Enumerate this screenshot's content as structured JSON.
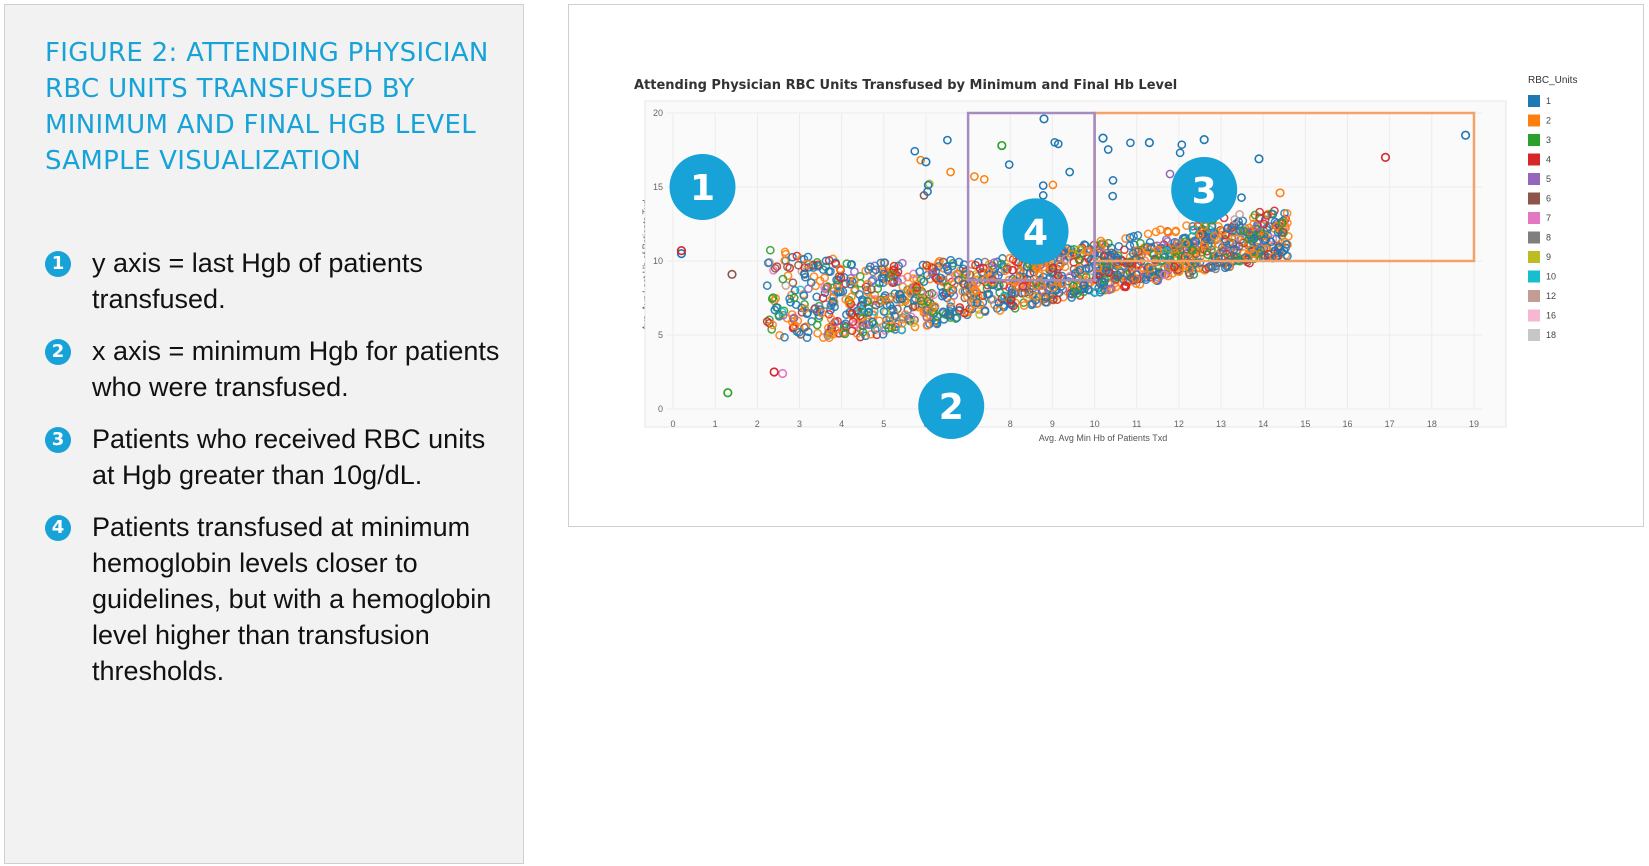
{
  "figure": {
    "title": "FIGURE 2: ATTENDING PHYSICIAN RBC UNITS TRANSFUSED BY MINIMUM AND FINAL HGB LEVEL SAMPLE VISUALIZATION"
  },
  "notes": [
    {
      "num": "1",
      "text": "y axis = last Hgb of patients transfused."
    },
    {
      "num": "2",
      "text": "x axis = minimum Hgb for patients who were transfused."
    },
    {
      "num": "3",
      "text": "Patients who received RBC units at Hgb greater than 10g/dL."
    },
    {
      "num": "4",
      "text": "Patients transfused at minimum hemoglobin levels closer to guidelines, but with a hemoglobin level higher than transfusion thresholds."
    }
  ],
  "chart_data": {
    "type": "scatter",
    "title": "Attending Physician RBC Units Transfused by Minimum and Final Hb Level",
    "xlabel": "Avg. Avg Min Hb of Patients Txd",
    "ylabel": "Avg. Avg Last Hb of Patients Txd",
    "xlim": [
      0,
      19
    ],
    "ylim": [
      0,
      20
    ],
    "x_ticks": [
      "0",
      "1",
      "2",
      "3",
      "4",
      "5",
      "6",
      "7",
      "8",
      "9",
      "10",
      "11",
      "12",
      "13",
      "14",
      "15",
      "16",
      "17",
      "18",
      "19"
    ],
    "y_ticks": [
      "0",
      "5",
      "10",
      "15",
      "20"
    ],
    "marker": "hollow-circle",
    "legend_title": "RBC_Units",
    "legend_position": "right",
    "series": [
      {
        "name": "1",
        "color": "#1f77b4"
      },
      {
        "name": "2",
        "color": "#ff7f0e"
      },
      {
        "name": "3",
        "color": "#2ca02c"
      },
      {
        "name": "4",
        "color": "#d62728"
      },
      {
        "name": "5",
        "color": "#9467bd"
      },
      {
        "name": "6",
        "color": "#8c564b"
      },
      {
        "name": "7",
        "color": "#e377c2"
      },
      {
        "name": "8",
        "color": "#7f7f7f"
      },
      {
        "name": "9",
        "color": "#bcbd22"
      },
      {
        "name": "10",
        "color": "#17becf"
      },
      {
        "name": "12",
        "color": "#c49c94"
      },
      {
        "name": "16",
        "color": "#f7b6d2"
      },
      {
        "name": "18",
        "color": "#c7c7c7"
      }
    ],
    "highlight_points": [
      {
        "series": "1",
        "x": 0.2,
        "y": 10.5
      },
      {
        "series": "4",
        "x": 0.2,
        "y": 10.7
      },
      {
        "series": "3",
        "x": 1.3,
        "y": 1.1
      },
      {
        "series": "6",
        "x": 1.4,
        "y": 9.1
      },
      {
        "series": "7",
        "x": 2.6,
        "y": 2.4
      },
      {
        "series": "4",
        "x": 2.4,
        "y": 2.5
      },
      {
        "series": "1",
        "x": 18.8,
        "y": 18.5
      },
      {
        "series": "4",
        "x": 16.9,
        "y": 17.0
      },
      {
        "series": "1",
        "x": 8.8,
        "y": 19.6
      },
      {
        "series": "3",
        "x": 7.8,
        "y": 17.8
      },
      {
        "series": "1",
        "x": 12.6,
        "y": 18.2
      },
      {
        "series": "1",
        "x": 10.2,
        "y": 18.3
      },
      {
        "series": "1",
        "x": 11.3,
        "y": 18.0
      },
      {
        "series": "1",
        "x": 6.0,
        "y": 16.7
      },
      {
        "series": "1",
        "x": 13.9,
        "y": 16.9
      },
      {
        "series": "2",
        "x": 14.4,
        "y": 14.6
      }
    ],
    "regions": [
      {
        "label": "3",
        "color": "#f5a26a",
        "x": [
          10,
          19
        ],
        "y": [
          10,
          20
        ]
      },
      {
        "label": "4",
        "color": "#a58bc0",
        "x": [
          7,
          10
        ],
        "y": [
          8.7,
          20
        ]
      }
    ],
    "markers": [
      {
        "label": "1",
        "x": 0.7,
        "y": 15.0
      },
      {
        "label": "2",
        "x": 6.6,
        "y": 0.2
      },
      {
        "label": "3",
        "x": 12.6,
        "y": 14.8
      },
      {
        "label": "4",
        "x": 8.6,
        "y": 12.0
      }
    ]
  }
}
